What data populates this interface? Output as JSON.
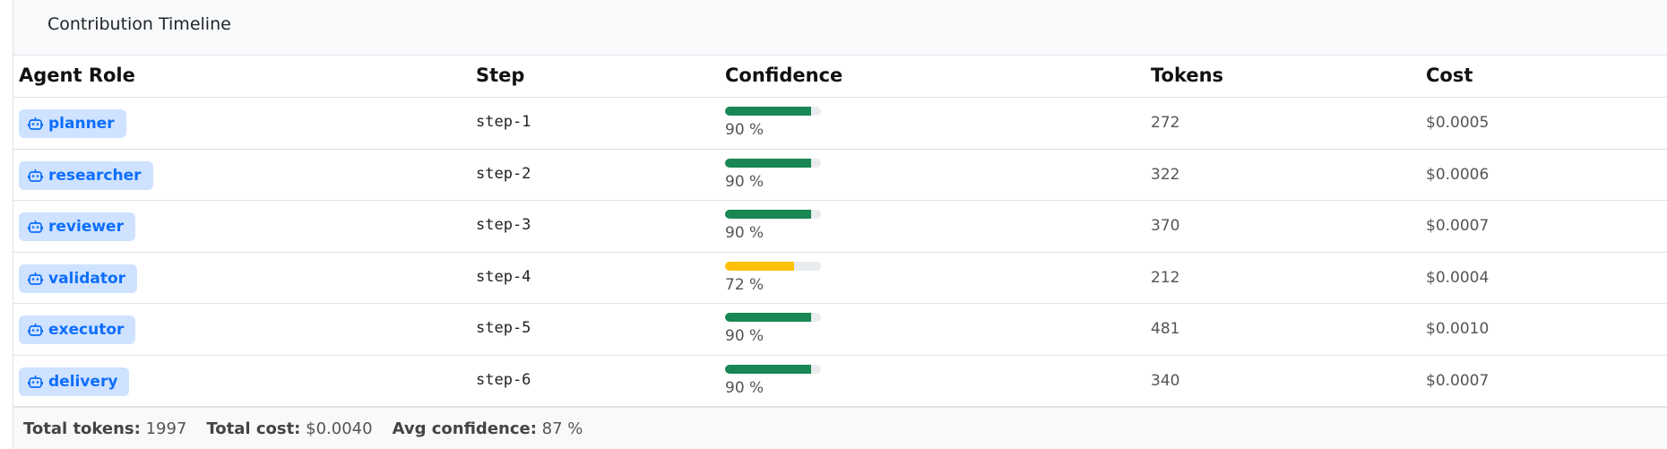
{
  "header": {
    "title": "Contribution Timeline"
  },
  "table": {
    "columns": [
      "Agent Role",
      "Step",
      "Confidence",
      "Tokens",
      "Cost"
    ],
    "rows": [
      {
        "role": "planner",
        "step": "step-1",
        "confidence": {
          "value": 90,
          "label": "90 %"
        },
        "tokens": 272,
        "cost": "$0.0005"
      },
      {
        "role": "researcher",
        "step": "step-2",
        "confidence": {
          "value": 90,
          "label": "90 %"
        },
        "tokens": 322,
        "cost": "$0.0006"
      },
      {
        "role": "reviewer",
        "step": "step-3",
        "confidence": {
          "value": 90,
          "label": "90 %"
        },
        "tokens": 370,
        "cost": "$0.0007"
      },
      {
        "role": "validator",
        "step": "step-4",
        "confidence": {
          "value": 72,
          "label": "72 %"
        },
        "tokens": 212,
        "cost": "$0.0004"
      },
      {
        "role": "executor",
        "step": "step-5",
        "confidence": {
          "value": 90,
          "label": "90 %"
        },
        "tokens": 481,
        "cost": "$0.0010"
      },
      {
        "role": "delivery",
        "step": "step-6",
        "confidence": {
          "value": 90,
          "label": "90 %"
        },
        "tokens": 340,
        "cost": "$0.0007"
      }
    ]
  },
  "footer": {
    "total_tokens": {
      "label": "Total tokens:",
      "value": 1997
    },
    "total_cost": {
      "label": "Total cost:",
      "value": "$0.0040"
    },
    "avg_confidence": {
      "label": "Avg confidence:",
      "value": "87 %"
    }
  }
}
